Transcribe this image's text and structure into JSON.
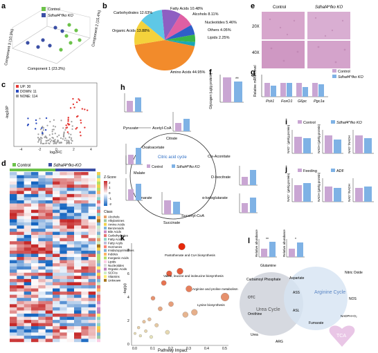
{
  "panels": {
    "a": {
      "letter": "a",
      "legend": [
        "Control",
        "Sdhaf4^fko KO"
      ],
      "axes": [
        "Component 1 (23.3%)",
        "Component 2 (15.4%)",
        "Component 3 (10.9%)"
      ]
    },
    "b": {
      "letter": "b"
    },
    "c": {
      "letter": "c",
      "legend": [
        "UP: 30",
        "DOWN: 11",
        "NONE: 114"
      ],
      "xlabel": "log2FC",
      "ylabel": "-log10P"
    },
    "d": {
      "letter": "d",
      "legend": [
        "Control",
        "Sdhaf4^fko-KO"
      ],
      "colorbar_title": "Z-Score",
      "colorbar_ticks": [
        "2",
        "1",
        "0",
        "-1",
        "-2"
      ],
      "class_title": "Class",
      "classes": [
        "Alcohols",
        "Alkylamines",
        "Amino Acids",
        "Benzenoids",
        "Bile Acids",
        "Carbohydrates",
        "Fatty Acids",
        "Fatty Acyls",
        "Hormones",
        "Imidazopyrimidines",
        "Indoles",
        "Inorganic Acids",
        "Lipids",
        "Nucleotides",
        "Organic Acids",
        "SCFAs",
        "Vitamins",
        "Unknown"
      ]
    },
    "e": {
      "letter": "e",
      "cols": [
        "Control",
        "Sdhaf4^fko KO"
      ],
      "rows": [
        "20X",
        "40X"
      ]
    },
    "f": {
      "letter": "f",
      "ylabel": "Glycogen (ug/g protein)"
    },
    "g": {
      "letter": "g",
      "legend": [
        "Control",
        "Sdhaf4^fko KO"
      ],
      "ylabel": "Relative mRNA level",
      "genes": [
        "Pck1",
        "FoxO1",
        "G6pc",
        "Pgc1a"
      ]
    },
    "h": {
      "letter": "h",
      "title": "Citric acid cycle",
      "legend": [
        "Control",
        "Sdhaf4^fko KO"
      ],
      "metabolites": [
        "Pyruvate",
        "Acetyl-CoA",
        "Citrate",
        "Cis-Aconitate",
        "D-Isocitrate",
        "α-ketoglutarate",
        "Succinyl-CoA",
        "Succinate",
        "Fumarate",
        "Malate",
        "Oxaloacetate"
      ],
      "ylabel": "Relative abundance"
    },
    "i": {
      "letter": "i",
      "legend": [
        "Control",
        "Sdhaf4^fko KO"
      ],
      "ylabels": [
        "NAD⁺ (µM/g protein)",
        "NADH (µM/g protein)",
        "NAD⁺/NADH"
      ]
    },
    "j": {
      "letter": "j",
      "legend": [
        "Feeding",
        "ADF"
      ],
      "ylabels": [
        "NAD⁺ (µM/g protein)",
        "NADH (µM/g protein)",
        "NAD⁺/NADH"
      ]
    },
    "k": {
      "letter": "k",
      "xlabel": "Pathway Impact",
      "ylabel": "-log(p)",
      "annotations": [
        "Pantothenate and CoA biosynthesis",
        "Valine, leucine and isoleucine biosynthesis",
        "Arginine and proline metabolism",
        "Lysine biosynthesis"
      ]
    },
    "l": {
      "letter": "l",
      "urea": "Urea Cycle",
      "arginine": "Arginine Cycle",
      "tca": "TCA",
      "labels": [
        "Glutamine",
        "Carbamoyl Phosphate",
        "OTC",
        "Ornithine",
        "Urea",
        "ARG",
        "Aspartate",
        "ASS",
        "ASL",
        "Fumarate",
        "Nitric Oxide",
        "NOS",
        "NADPH+O₂"
      ],
      "ylabel": "Relative abundance"
    }
  },
  "colors": {
    "control": "#c9a6d3",
    "ko": "#7fb2e5",
    "ko_dark": "#3f6fb5",
    "pca_control": "#6cc24a",
    "pca_ko": "#3b4fa5"
  },
  "chart_data": [
    {
      "type": "pie",
      "panel": "b",
      "labels": [
        "Fatty Acids",
        "Alcohols",
        "Nucleotides",
        "Others",
        "Lipids",
        "Amino Acids",
        "Organic Acids",
        "Carbohydrates"
      ],
      "values": [
        10.48,
        8.11,
        5.46,
        4.05,
        2.25,
        44.95,
        13.88,
        12.63
      ],
      "display": [
        "Fatty Acids 10.48%",
        "Alcohols 8.11%",
        "Nucleotides 5.46%",
        "Others 4.05%",
        "Lipids 2.25%",
        "Amino Acids 44.95%",
        "Organic Acids 13.88%",
        "Carbohydrates 12.63%"
      ],
      "colors": [
        "#8e5fc2",
        "#e05fa3",
        "#2f5fc9",
        "#39b54a",
        "#1aa6b7",
        "#f28b2b",
        "#f4d23c",
        "#5ec8e6"
      ]
    },
    {
      "type": "scatter",
      "panel": "c",
      "x": [
        -4,
        -2,
        0,
        2,
        4
      ],
      "y": [
        0,
        2,
        4,
        6,
        8
      ],
      "series": [
        {
          "name": "UP: 30",
          "color": "#e53935"
        },
        {
          "name": "DOWN: 11",
          "color": "#2b4bbf"
        },
        {
          "name": "NONE: 114",
          "color": "#9e9e9e"
        }
      ]
    },
    {
      "type": "bar",
      "panel": "g",
      "categories": [
        "Pck1",
        "FoxO1",
        "G6pc",
        "Pgc1a"
      ],
      "series": [
        {
          "name": "Control",
          "values": [
            1.0,
            1.0,
            1.0,
            1.0
          ]
        },
        {
          "name": "Sdhaf4^fko KO",
          "values": [
            0.8,
            1.0,
            0.7,
            0.9
          ]
        }
      ],
      "ylim": [
        0,
        1.5
      ]
    },
    {
      "type": "scatter",
      "panel": "k",
      "xlabel": "Pathway Impact",
      "ylabel": "-log(p)",
      "x_ticks": [
        "0.0",
        "0.1",
        "0.2",
        "0.3",
        "0.4",
        "0.5"
      ],
      "y_ticks": [
        "0",
        "2",
        "4",
        "6",
        "8"
      ],
      "points": [
        [
          0.26,
          8.3
        ],
        [
          0.25,
          6.2
        ],
        [
          0.19,
          6.0
        ],
        [
          0.5,
          4.0
        ],
        [
          0.16,
          5.2
        ],
        [
          0.3,
          4.7
        ],
        [
          0.1,
          3.9
        ],
        [
          0.2,
          3.4
        ],
        [
          0.14,
          3.0
        ],
        [
          0.33,
          2.7
        ],
        [
          0.28,
          2.5
        ],
        [
          0.08,
          2.1
        ],
        [
          0.05,
          1.9
        ],
        [
          0.12,
          1.6
        ],
        [
          0.02,
          1.4
        ],
        [
          0.06,
          1.1
        ],
        [
          0.0,
          0.9
        ],
        [
          0.03,
          0.7
        ],
        [
          0.09,
          0.6
        ],
        [
          0.18,
          1.0
        ]
      ]
    }
  ]
}
